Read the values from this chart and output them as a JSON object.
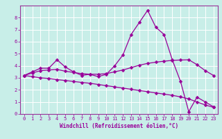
{
  "title": "",
  "xlabel": "Windchill (Refroidissement éolien,°C)",
  "ylabel": "",
  "bg_color": "#c8eee8",
  "grid_color": "#ffffff",
  "line_color": "#990099",
  "spine_color": "#993399",
  "xlim": [
    -0.5,
    23.5
  ],
  "ylim": [
    0,
    9
  ],
  "xticks": [
    0,
    1,
    2,
    3,
    4,
    5,
    6,
    7,
    8,
    9,
    10,
    11,
    12,
    13,
    14,
    15,
    16,
    17,
    18,
    19,
    20,
    21,
    22,
    23
  ],
  "yticks": [
    0,
    1,
    2,
    3,
    4,
    5,
    6,
    7,
    8
  ],
  "line1_x": [
    0,
    1,
    2,
    3,
    4,
    5,
    6,
    7,
    8,
    9,
    10,
    11,
    12,
    13,
    14,
    15,
    16,
    17,
    18,
    19,
    20,
    21,
    22,
    23
  ],
  "line1_y": [
    3.2,
    3.5,
    3.8,
    3.8,
    4.5,
    3.9,
    3.5,
    3.2,
    3.3,
    3.1,
    3.3,
    4.0,
    4.9,
    6.6,
    7.6,
    8.6,
    7.2,
    6.6,
    4.5,
    2.7,
    0.2,
    1.4,
    1.0,
    0.6
  ],
  "line2_x": [
    0,
    1,
    2,
    3,
    4,
    5,
    6,
    7,
    8,
    9,
    10,
    11,
    12,
    13,
    14,
    15,
    16,
    17,
    18,
    19,
    20,
    21,
    22,
    23
  ],
  "line2_y": [
    3.2,
    3.4,
    3.6,
    3.65,
    3.7,
    3.55,
    3.45,
    3.35,
    3.3,
    3.3,
    3.35,
    3.5,
    3.65,
    3.85,
    4.05,
    4.2,
    4.3,
    4.38,
    4.45,
    4.48,
    4.5,
    4.1,
    3.6,
    3.2
  ],
  "line3_x": [
    0,
    1,
    2,
    3,
    4,
    5,
    6,
    7,
    8,
    9,
    10,
    11,
    12,
    13,
    14,
    15,
    16,
    17,
    18,
    19,
    20,
    21,
    22,
    23
  ],
  "line3_y": [
    3.2,
    3.1,
    3.0,
    2.95,
    2.85,
    2.78,
    2.7,
    2.62,
    2.55,
    2.45,
    2.35,
    2.25,
    2.15,
    2.05,
    1.95,
    1.85,
    1.75,
    1.65,
    1.55,
    1.42,
    1.25,
    1.0,
    0.75,
    0.55
  ],
  "marker": "D",
  "markersize": 2.5,
  "linewidth": 0.9,
  "tick_fontsize": 5.0,
  "label_fontsize": 5.5
}
